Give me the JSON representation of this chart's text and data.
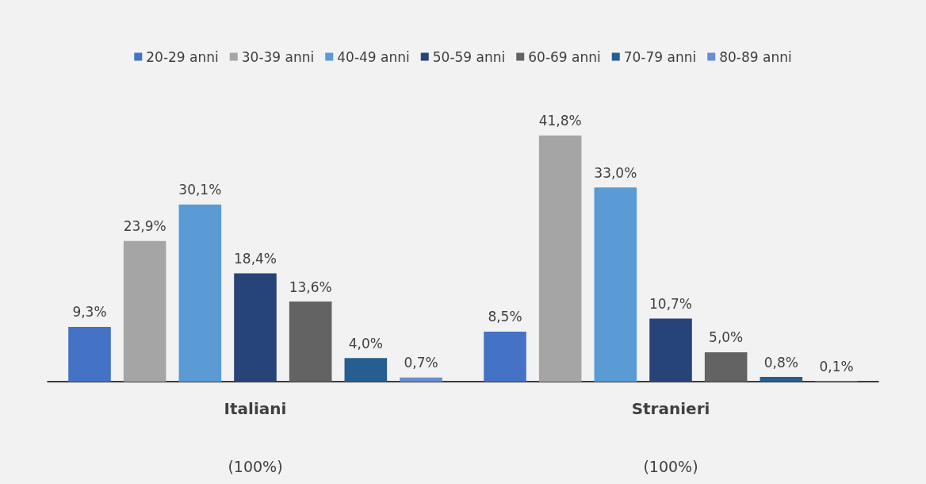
{
  "chart_data": {
    "type": "bar",
    "categories": [
      "Italiani",
      "Stranieri"
    ],
    "annotations": [
      "(100%)",
      "(100%)"
    ],
    "legend": "top",
    "series": [
      {
        "name": "20-29 anni",
        "color": "#4472c4",
        "values": [
          9.3,
          8.5
        ],
        "value_labels": [
          "9,3%",
          "8,5%"
        ]
      },
      {
        "name": "30-39 anni",
        "color": "#a5a5a5",
        "values": [
          23.9,
          41.8
        ],
        "value_labels": [
          "23,9%",
          "41,8%"
        ]
      },
      {
        "name": "40-49 anni",
        "color": "#5b9bd5",
        "values": [
          30.1,
          33.0
        ],
        "value_labels": [
          "30,1%",
          "33,0%"
        ]
      },
      {
        "name": "50-59 anni",
        "color": "#264478",
        "values": [
          18.4,
          10.7
        ],
        "value_labels": [
          "18,4%",
          "10,7%"
        ]
      },
      {
        "name": "60-69 anni",
        "color": "#636363",
        "values": [
          13.6,
          5.0
        ],
        "value_labels": [
          "13,6%",
          "5,0%"
        ]
      },
      {
        "name": "70-79 anni",
        "color": "#255e91",
        "values": [
          4.0,
          0.8
        ],
        "value_labels": [
          "4,0%",
          "0,8%"
        ]
      },
      {
        "name": "80-89 anni",
        "color": "#698ed0",
        "values": [
          0.7,
          0.1
        ],
        "value_labels": [
          "0,7%",
          "0,1%"
        ]
      }
    ]
  }
}
